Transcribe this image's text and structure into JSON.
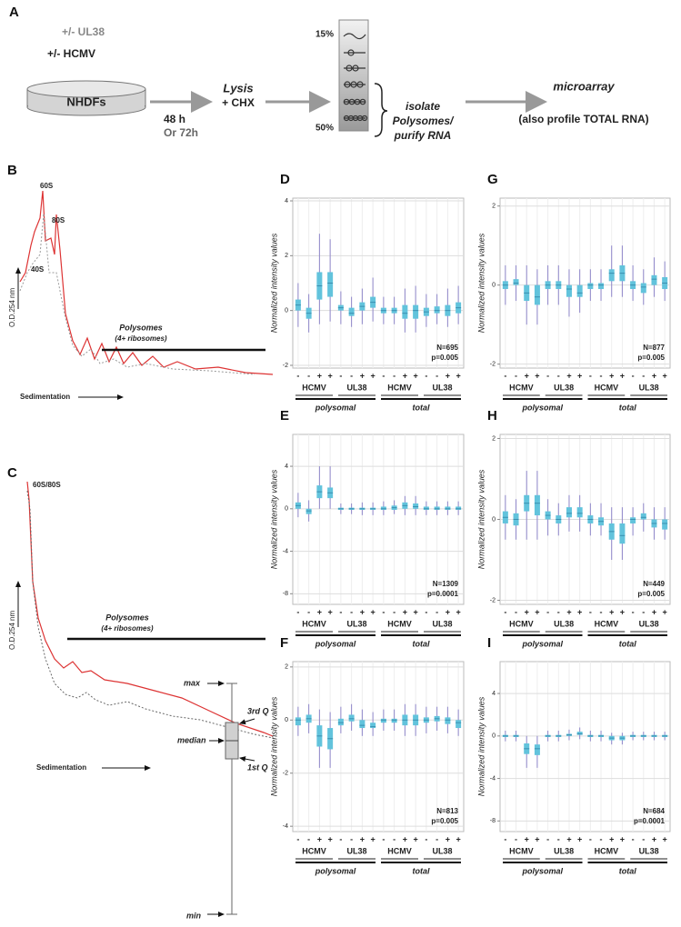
{
  "panel_a": {
    "label": "A",
    "ul38": "+/- UL38",
    "hcmv": "+/- HCMV",
    "cells": "NHDFs",
    "time1": "48 h",
    "time2": "Or 72h",
    "lysis": "Lysis",
    "chx": "+ CHX",
    "top_pct": "15%",
    "bottom_pct": "50%",
    "isolate": "isolate",
    "polysomes": "Polysomes/",
    "purify": "purify RNA",
    "microarray": "microarray",
    "total": "(also profile TOTAL RNA)"
  },
  "panel_b": {
    "label": "B",
    "peak1": "60S",
    "peak2": "80S",
    "peak3": "40S",
    "yaxis": "O.D.254 nm",
    "polysomes": "Polysomes",
    "ribosomes": "(4+ ribosomes)",
    "xaxis": "Sedimentation"
  },
  "panel_c": {
    "label": "C",
    "peak1": "60S/80S",
    "yaxis": "O.D.254 nm",
    "polysomes": "Polysomes",
    "ribosomes": "(4+ ribosomes)",
    "xaxis": "Sedimentation"
  },
  "box_legend": {
    "max": "max",
    "median": "median",
    "min": "min",
    "q3": "3rd Q",
    "q1": "1st Q"
  },
  "chart_data": [
    {
      "type": "box",
      "label": "D",
      "ylabel": "Normalized intensity values",
      "ylim": [
        -2.1,
        4.1
      ],
      "yticks": [
        -2,
        0,
        2,
        4
      ],
      "grid": true,
      "color": "#62c3dc",
      "whisker_color": "#8e86c9",
      "signs": [
        "-",
        "-",
        "+",
        "+",
        "-",
        "-",
        "+",
        "+",
        "-",
        "-",
        "+",
        "+",
        "-",
        "-",
        "+",
        "+"
      ],
      "groups": [
        "HCMV",
        "UL38",
        "HCMV",
        "UL38"
      ],
      "sections": [
        "polysomal",
        "total"
      ],
      "annotation": [
        "N=695",
        "p=0.005"
      ],
      "boxes": [
        [
          -0.6,
          0,
          0.2,
          0.4,
          1
        ],
        [
          -0.8,
          -0.3,
          -0.1,
          0.1,
          0.6
        ],
        [
          -0.5,
          0.4,
          0.9,
          1.4,
          2.8
        ],
        [
          -0.4,
          0.5,
          1,
          1.4,
          2.6
        ],
        [
          -0.5,
          0,
          0.1,
          0.2,
          0.7
        ],
        [
          -0.6,
          -0.2,
          -0.1,
          0.1,
          0.5
        ],
        [
          -0.5,
          0,
          0.15,
          0.3,
          0.8
        ],
        [
          -0.4,
          0.1,
          0.3,
          0.5,
          1.2
        ],
        [
          -0.5,
          -0.1,
          0,
          0.1,
          0.5
        ],
        [
          -0.5,
          -0.1,
          0,
          0.1,
          0.5
        ],
        [
          -0.8,
          -0.3,
          -0.1,
          0.2,
          0.8
        ],
        [
          -0.8,
          -0.3,
          0,
          0.2,
          0.9
        ],
        [
          -0.6,
          -0.2,
          -0.05,
          0.1,
          0.6
        ],
        [
          -0.5,
          -0.1,
          0,
          0.15,
          0.6
        ],
        [
          -0.6,
          -0.2,
          0,
          0.2,
          0.8
        ],
        [
          -0.5,
          -0.1,
          0.1,
          0.3,
          0.9
        ]
      ]
    },
    {
      "type": "box",
      "label": "G",
      "ylabel": "Normalized intensity values",
      "ylim": [
        -2.1,
        2.2
      ],
      "yticks": [
        -2,
        0,
        2
      ],
      "grid": true,
      "color": "#62c3dc",
      "whisker_color": "#8e86c9",
      "signs": [
        "-",
        "-",
        "+",
        "+",
        "-",
        "-",
        "+",
        "+",
        "-",
        "-",
        "+",
        "+",
        "-",
        "-",
        "+",
        "+"
      ],
      "groups": [
        "HCMV",
        "UL38",
        "HCMV",
        "UL38"
      ],
      "sections": [
        "polysomal",
        "total"
      ],
      "annotation": [
        "N=877",
        "p=0.005"
      ],
      "boxes": [
        [
          -0.5,
          -0.1,
          0,
          0.1,
          0.5
        ],
        [
          -0.4,
          0,
          0.05,
          0.15,
          0.5
        ],
        [
          -1,
          -0.4,
          -0.2,
          0,
          0.5
        ],
        [
          -1,
          -0.5,
          -0.3,
          0,
          0.4
        ],
        [
          -0.5,
          -0.1,
          0,
          0.1,
          0.5
        ],
        [
          -0.5,
          -0.1,
          0,
          0.1,
          0.5
        ],
        [
          -0.8,
          -0.3,
          -0.1,
          0,
          0.4
        ],
        [
          -0.7,
          -0.3,
          -0.2,
          0,
          0.4
        ],
        [
          -0.4,
          -0.1,
          0,
          0.05,
          0.4
        ],
        [
          -0.4,
          -0.1,
          0,
          0.05,
          0.4
        ],
        [
          -0.3,
          0.1,
          0.3,
          0.4,
          1
        ],
        [
          -0.3,
          0.1,
          0.3,
          0.5,
          1
        ],
        [
          -0.4,
          -0.1,
          0,
          0.1,
          0.5
        ],
        [
          -0.5,
          -0.2,
          -0.05,
          0.05,
          0.4
        ],
        [
          -0.3,
          0,
          0.15,
          0.25,
          0.7
        ],
        [
          -0.4,
          -0.1,
          0.05,
          0.2,
          0.6
        ]
      ]
    },
    {
      "type": "box",
      "label": "E",
      "ylabel": "Normalized intensity values",
      "ylim": [
        -9,
        7
      ],
      "yticks": [
        -8,
        -4,
        0,
        4
      ],
      "grid": true,
      "color": "#62c3dc",
      "whisker_color": "#8e86c9",
      "signs": [
        "-",
        "-",
        "+",
        "+",
        "-",
        "-",
        "+",
        "+",
        "-",
        "-",
        "+",
        "+",
        "-",
        "-",
        "+",
        "+"
      ],
      "groups": [
        "HCMV",
        "UL38",
        "HCMV",
        "UL38"
      ],
      "sections": [
        "polysomal",
        "total"
      ],
      "annotation": [
        "N=1309",
        "p=0.0001"
      ],
      "boxes": [
        [
          -0.8,
          0,
          0.3,
          0.6,
          1.5
        ],
        [
          -1.2,
          -0.5,
          -0.2,
          0,
          0.8
        ],
        [
          0,
          1,
          1.6,
          2.2,
          4
        ],
        [
          0,
          1,
          1.5,
          2,
          4
        ],
        [
          -0.5,
          -0.1,
          0,
          0.1,
          0.5
        ],
        [
          -0.5,
          -0.1,
          0,
          0.1,
          0.5
        ],
        [
          -0.6,
          -0.1,
          0,
          0.1,
          0.6
        ],
        [
          -0.6,
          -0.1,
          0,
          0.1,
          0.6
        ],
        [
          -0.6,
          -0.1,
          0,
          0.2,
          0.7
        ],
        [
          -0.5,
          -0.1,
          0.1,
          0.3,
          0.8
        ],
        [
          -0.6,
          0,
          0.3,
          0.6,
          1.2
        ],
        [
          -0.6,
          0,
          0.2,
          0.5,
          1.2
        ],
        [
          -0.6,
          -0.1,
          0,
          0.2,
          0.7
        ],
        [
          -0.6,
          -0.1,
          0,
          0.2,
          0.7
        ],
        [
          -0.6,
          -0.1,
          0,
          0.2,
          0.7
        ],
        [
          -0.6,
          -0.1,
          0,
          0.2,
          0.7
        ]
      ]
    },
    {
      "type": "box",
      "label": "H",
      "ylabel": "Normalized intensity values",
      "ylim": [
        -2.1,
        2.1
      ],
      "yticks": [
        -2,
        0,
        2
      ],
      "grid": true,
      "color": "#62c3dc",
      "whisker_color": "#8e86c9",
      "signs": [
        "-",
        "-",
        "+",
        "+",
        "-",
        "-",
        "+",
        "+",
        "-",
        "-",
        "+",
        "+",
        "-",
        "-",
        "+",
        "+"
      ],
      "groups": [
        "HCMV",
        "UL38",
        "HCMV",
        "UL38"
      ],
      "sections": [
        "polysomal",
        "total"
      ],
      "annotation": [
        "N=449",
        "p=0.005"
      ],
      "boxes": [
        [
          -0.5,
          -0.1,
          0.05,
          0.2,
          0.6
        ],
        [
          -0.5,
          -0.15,
          0,
          0.15,
          0.5
        ],
        [
          -0.5,
          0.2,
          0.4,
          0.6,
          1.2
        ],
        [
          -0.5,
          0.1,
          0.4,
          0.6,
          1.2
        ],
        [
          -0.4,
          0,
          0.1,
          0.2,
          0.5
        ],
        [
          -0.4,
          -0.1,
          0,
          0.1,
          0.4
        ],
        [
          -0.3,
          0.05,
          0.15,
          0.3,
          0.6
        ],
        [
          -0.3,
          0.05,
          0.15,
          0.3,
          0.6
        ],
        [
          -0.4,
          -0.1,
          0,
          0.1,
          0.4
        ],
        [
          -0.4,
          -0.15,
          -0.05,
          0.05,
          0.4
        ],
        [
          -1,
          -0.5,
          -0.3,
          -0.1,
          0.3
        ],
        [
          -1,
          -0.6,
          -0.4,
          -0.1,
          0.3
        ],
        [
          -0.4,
          -0.1,
          0,
          0.05,
          0.3
        ],
        [
          -0.3,
          0,
          0.05,
          0.15,
          0.4
        ],
        [
          -0.5,
          -0.2,
          -0.1,
          0,
          0.3
        ],
        [
          -0.5,
          -0.25,
          -0.1,
          0,
          0.3
        ]
      ]
    },
    {
      "type": "box",
      "label": "F",
      "ylabel": "Normalized intensity values",
      "ylim": [
        -4.2,
        2.2
      ],
      "yticks": [
        -4,
        -2,
        0,
        2
      ],
      "grid": true,
      "color": "#62c3dc",
      "whisker_color": "#8e86c9",
      "signs": [
        "-",
        "-",
        "+",
        "+",
        "-",
        "-",
        "+",
        "+",
        "-",
        "-",
        "+",
        "+",
        "-",
        "-",
        "+",
        "+"
      ],
      "groups": [
        "HCMV",
        "UL38",
        "HCMV",
        "UL38"
      ],
      "sections": [
        "polysomal",
        "total"
      ],
      "annotation": [
        "N=813",
        "p=0.005"
      ],
      "boxes": [
        [
          -0.6,
          -0.2,
          0,
          0.1,
          0.5
        ],
        [
          -0.5,
          -0.1,
          0.05,
          0.2,
          0.6
        ],
        [
          -1.8,
          -1,
          -0.6,
          -0.2,
          0.4
        ],
        [
          -1.8,
          -1.1,
          -0.7,
          -0.3,
          0.3
        ],
        [
          -0.5,
          -0.2,
          -0.1,
          0.05,
          0.5
        ],
        [
          -0.4,
          -0.05,
          0.05,
          0.2,
          0.6
        ],
        [
          -0.6,
          -0.3,
          -0.2,
          0,
          0.4
        ],
        [
          -0.6,
          -0.3,
          -0.25,
          -0.1,
          0.3
        ],
        [
          -0.4,
          -0.1,
          0,
          0.05,
          0.4
        ],
        [
          -0.4,
          -0.1,
          0,
          0.05,
          0.4
        ],
        [
          -0.6,
          -0.2,
          0,
          0.2,
          0.6
        ],
        [
          -0.6,
          -0.2,
          0,
          0.2,
          0.6
        ],
        [
          -0.5,
          -0.1,
          0,
          0.1,
          0.5
        ],
        [
          -0.4,
          -0.05,
          0.05,
          0.15,
          0.5
        ],
        [
          -0.5,
          -0.15,
          0,
          0.1,
          0.5
        ],
        [
          -0.6,
          -0.3,
          -0.1,
          0,
          0.4
        ]
      ]
    },
    {
      "type": "box",
      "label": "I",
      "ylabel": "Normalized intensity values",
      "ylim": [
        -9,
        7
      ],
      "yticks": [
        -8,
        -4,
        0,
        4
      ],
      "grid": true,
      "color": "#62c3dc",
      "whisker_color": "#8e86c9",
      "signs": [
        "-",
        "-",
        "+",
        "+",
        "-",
        "-",
        "+",
        "+",
        "-",
        "-",
        "+",
        "+",
        "-",
        "-",
        "+",
        "+"
      ],
      "groups": [
        "HCMV",
        "UL38",
        "HCMV",
        "UL38"
      ],
      "sections": [
        "polysomal",
        "total"
      ],
      "annotation": [
        "N=684",
        "p=0.0001"
      ],
      "boxes": [
        [
          -0.5,
          -0.1,
          0,
          0.1,
          0.5
        ],
        [
          -0.5,
          -0.1,
          0,
          0.1,
          0.5
        ],
        [
          -3,
          -1.7,
          -1.2,
          -0.7,
          0
        ],
        [
          -3,
          -1.8,
          -1.2,
          -0.8,
          0
        ],
        [
          -0.5,
          -0.1,
          0,
          0.1,
          0.5
        ],
        [
          -0.5,
          -0.1,
          0,
          0.1,
          0.5
        ],
        [
          -0.4,
          0,
          0.1,
          0.2,
          0.6
        ],
        [
          -0.3,
          0.1,
          0.2,
          0.4,
          0.8
        ],
        [
          -0.5,
          -0.1,
          0,
          0.1,
          0.5
        ],
        [
          -0.5,
          -0.1,
          0,
          0.1,
          0.5
        ],
        [
          -0.8,
          -0.4,
          -0.2,
          0,
          0.3
        ],
        [
          -0.8,
          -0.4,
          -0.2,
          0,
          0.3
        ],
        [
          -0.4,
          -0.1,
          0,
          0.1,
          0.4
        ],
        [
          -0.4,
          -0.1,
          0,
          0.1,
          0.4
        ],
        [
          -0.4,
          -0.1,
          0,
          0.1,
          0.4
        ],
        [
          -0.4,
          -0.1,
          0,
          0.1,
          0.4
        ]
      ]
    }
  ]
}
